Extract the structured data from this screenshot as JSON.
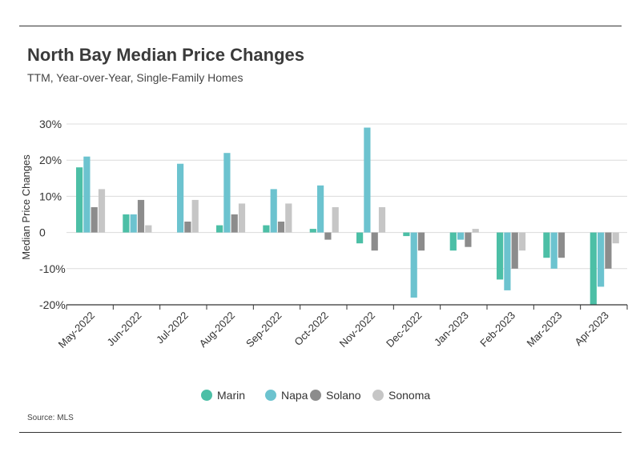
{
  "header": {
    "title": "North Bay Median Price Changes",
    "subtitle": "TTM, Year-over-Year, Single-Family Homes"
  },
  "footer": {
    "source": "Source: MLS"
  },
  "chart_data": {
    "type": "bar",
    "title": "North Bay Median Price Changes",
    "subtitle": "TTM, Year-over-Year, Single-Family Homes",
    "xlabel": "",
    "ylabel": "Median Price Changes",
    "ylim": [
      -20,
      30
    ],
    "yticks": [
      -20,
      -10,
      0,
      10,
      20,
      30
    ],
    "ytick_labels": [
      "-20%",
      "-10%",
      "0",
      "10%",
      "20%",
      "30%"
    ],
    "grid": true,
    "legend_position": "bottom",
    "categories": [
      "May-2022",
      "Jun-2022",
      "Jul-2022",
      "Aug-2022",
      "Sep-2022",
      "Oct-2022",
      "Nov-2022",
      "Dec-2022",
      "Jan-2023",
      "Feb-2023",
      "Mar-2023",
      "Apr-2023"
    ],
    "series": [
      {
        "name": "Marin",
        "color": "#4cbfa6",
        "values": [
          18,
          5,
          0,
          2,
          2,
          1,
          -3,
          -1,
          -5,
          -13,
          -7,
          -20
        ]
      },
      {
        "name": "Napa",
        "color": "#6cc3cf",
        "values": [
          21,
          5,
          19,
          22,
          12,
          13,
          29,
          -18,
          -2,
          -16,
          -10,
          -15
        ]
      },
      {
        "name": "Solano",
        "color": "#8c8c8c",
        "values": [
          7,
          9,
          3,
          5,
          3,
          -2,
          -5,
          -5,
          -4,
          -10,
          -7,
          -10
        ]
      },
      {
        "name": "Sonoma",
        "color": "#c6c6c6",
        "values": [
          12,
          2,
          9,
          8,
          8,
          7,
          7,
          0,
          1,
          -5,
          0,
          -3
        ]
      }
    ]
  }
}
